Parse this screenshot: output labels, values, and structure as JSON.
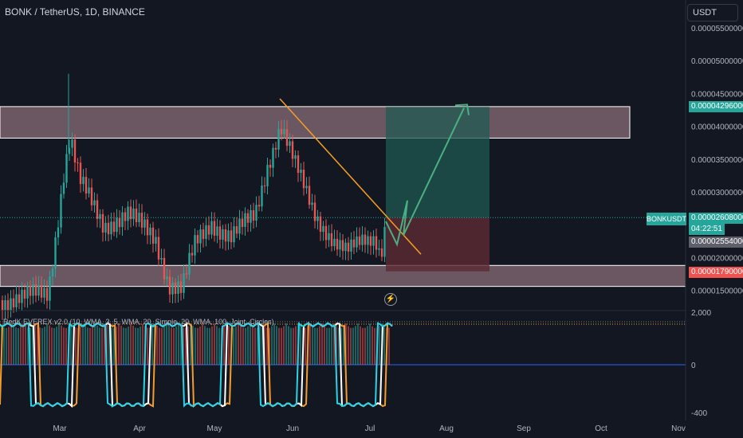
{
  "header": {
    "symbol_title": "BONK / TetherUS, 1D, BINANCE",
    "currency": "USDT"
  },
  "indicator": {
    "title": "RedK EVEREX v2.0 (10, WMA, 3, 5, WMA, 20, Simple, 20, WMA, 100, Joint, Circles)"
  },
  "colors": {
    "background": "#131722",
    "up": "#26a69a",
    "down": "#ef5350",
    "zone": "#d8a7b1",
    "trendline": "#f7a021",
    "projection": "#4caf82",
    "target_box": "#1f5a52",
    "stop_box": "#5c2a34",
    "osc_cyan": "#2ad4e6",
    "osc_orange": "#f39c2c",
    "osc_white": "#ffffff"
  },
  "chart_data": {
    "type": "candlestick",
    "symbol": "BONKUSDT",
    "price_axis_ticks": [
      "0.00005500000",
      "0.00005000000",
      "0.00004500000",
      "0.00004000000",
      "0.00003500000",
      "0.00003000000",
      "0.00002000000",
      "0.00001500000"
    ],
    "time_axis_ticks": [
      "Mar",
      "Apr",
      "May",
      "Jun",
      "Jul",
      "Aug",
      "Sep",
      "Oct",
      "Nov"
    ],
    "price_tags": {
      "target": "0.00004296000",
      "last_price": "0.00002608000",
      "countdown": "04:22:51",
      "last_close": "0.00002554000",
      "stop": "0.00001790000",
      "symbol_label": "BONKUSDT"
    },
    "resistance_zone": [
      3.82e-05,
      4.3e-05
    ],
    "support_zone": [
      1.56e-05,
      1.88e-05
    ],
    "target_price": 4.296e-05,
    "stop_price": 1.79e-05,
    "entry_price": 2.608e-05,
    "indicator_axis_ticks": [
      "2,000",
      "0",
      "-400"
    ],
    "grid": false,
    "price_range": [
      1.18e-05,
      5.75e-05
    ]
  }
}
